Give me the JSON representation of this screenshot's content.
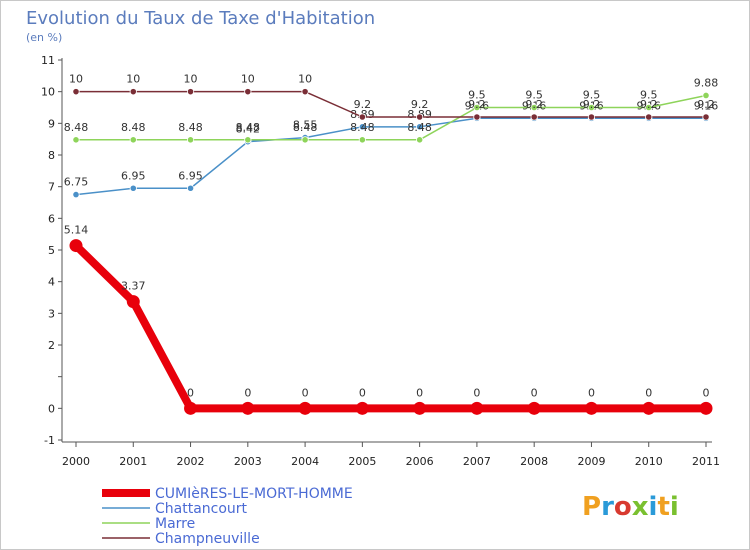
{
  "chart_data": {
    "type": "line",
    "title": "Evolution du Taux de Taxe d'Habitation",
    "subtitle": "(en %)",
    "x": [
      "2000",
      "2001",
      "2002",
      "2003",
      "2004",
      "2005",
      "2006",
      "2007",
      "2008",
      "2009",
      "2010",
      "2011"
    ],
    "ylim": [
      -1,
      11
    ],
    "yticks": [
      "-1",
      "0",
      "",
      "2",
      "3",
      "4",
      "5",
      "6",
      "7",
      "8",
      "9",
      "10",
      "11"
    ],
    "grid": false,
    "legend_position": "bottom-left",
    "series": [
      {
        "name": "CUMIèRES-LE-MORT-HOMME",
        "color": "#e8000b",
        "values": [
          5.14,
          3.37,
          0,
          0,
          0,
          0,
          0,
          0,
          0,
          0,
          0,
          0
        ],
        "labels": [
          "5.14",
          "3.37",
          "0",
          "0",
          "0",
          "0",
          "0",
          "0",
          "0",
          "0",
          "0",
          "0"
        ]
      },
      {
        "name": "Chattancourt",
        "color": "#4a90c8",
        "values": [
          6.75,
          6.95,
          6.95,
          8.42,
          8.55,
          8.89,
          8.89,
          9.16,
          9.16,
          9.16,
          9.16,
          9.16
        ],
        "labels": [
          "6.75",
          "6.95",
          "6.95",
          "8.42",
          "8.55",
          "8.89",
          "8.89",
          "9.16",
          "9.16",
          "9.16",
          "9.16",
          "9.16"
        ]
      },
      {
        "name": "Marre",
        "color": "#8ed45a",
        "values": [
          8.48,
          8.48,
          8.48,
          8.48,
          8.48,
          8.48,
          8.48,
          9.5,
          9.5,
          9.5,
          9.5,
          9.88
        ],
        "labels": [
          "8.48",
          "8.48",
          "8.48",
          "8.48",
          "8.48",
          "8.48",
          "8.48",
          "9.5",
          "9.5",
          "9.5",
          "9.5",
          "9.88"
        ]
      },
      {
        "name": "Champneuville",
        "color": "#7a2e36",
        "values": [
          10,
          10,
          10,
          10,
          10,
          9.2,
          9.2,
          9.2,
          9.2,
          9.2,
          9.2,
          9.2
        ],
        "labels": [
          "10",
          "10",
          "10",
          "10",
          "10",
          "9.2",
          "9.2",
          "9.2",
          "9.2",
          "9.2",
          "9.2",
          "9.2"
        ]
      }
    ]
  },
  "logo": {
    "text": "Proxiti",
    "letter_colors": [
      "#f0a020",
      "#2a9ad8",
      "#d83a30",
      "#7ac030",
      "#2a9ad8",
      "#f0a020",
      "#7ac030"
    ]
  }
}
